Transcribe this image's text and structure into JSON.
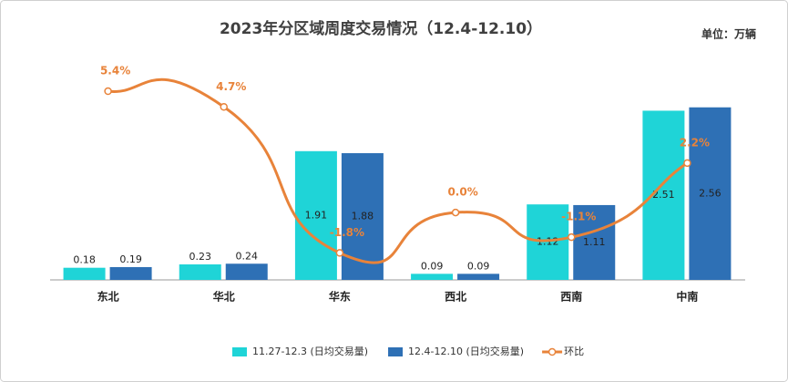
{
  "chart_data": {
    "type": "bar-line",
    "title": "2023年分区域周度交易情况（12.4-12.10）",
    "unit": "单位：万辆",
    "categories": [
      "东北",
      "华北",
      "华东",
      "西北",
      "西南",
      "中南"
    ],
    "series": [
      {
        "name": "11.27-12.3 (日均交易量)",
        "color": "#1fd4d7",
        "type": "bar",
        "values": [
          0.18,
          0.23,
          1.91,
          0.09,
          1.12,
          2.51
        ]
      },
      {
        "name": "12.4-12.10  (日均交易量)",
        "color": "#2e70b5",
        "type": "bar",
        "values": [
          0.19,
          0.24,
          1.88,
          0.09,
          1.11,
          2.56
        ]
      },
      {
        "name": "环比",
        "color": "#e8833a",
        "type": "line",
        "axis": "y2",
        "values": [
          5.4,
          4.7,
          -1.8,
          0.0,
          -1.1,
          2.2
        ],
        "value_labels": [
          "5.4%",
          "4.7%",
          "-1.8%",
          "0.0%",
          "-1.1%",
          "2.2%"
        ]
      }
    ],
    "ylim": [
      0,
      2.8
    ],
    "y2lim": [
      -3,
      5.4
    ]
  }
}
